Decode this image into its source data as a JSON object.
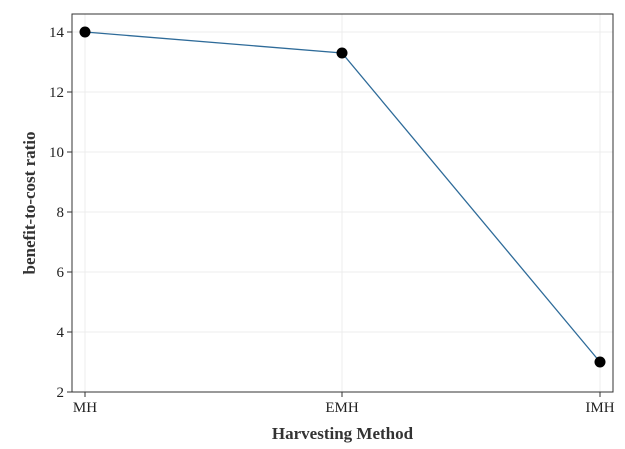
{
  "chart_data": {
    "type": "line",
    "categories": [
      "MH",
      "EMH",
      "IMH"
    ],
    "series": [
      {
        "values": [
          14.0,
          13.3,
          3.0
        ]
      }
    ],
    "xlabel": "Harvesting Method",
    "ylabel": "benefit-to-cost ratio",
    "ylim": [
      2,
      14.6
    ],
    "yticks": [
      2,
      4,
      6,
      8,
      10,
      12,
      14
    ],
    "grid": true,
    "legend": "none",
    "colors": {
      "line": "#2e6b99",
      "marker": "#000000",
      "grid": "#ececec",
      "frame": "#333333"
    }
  }
}
